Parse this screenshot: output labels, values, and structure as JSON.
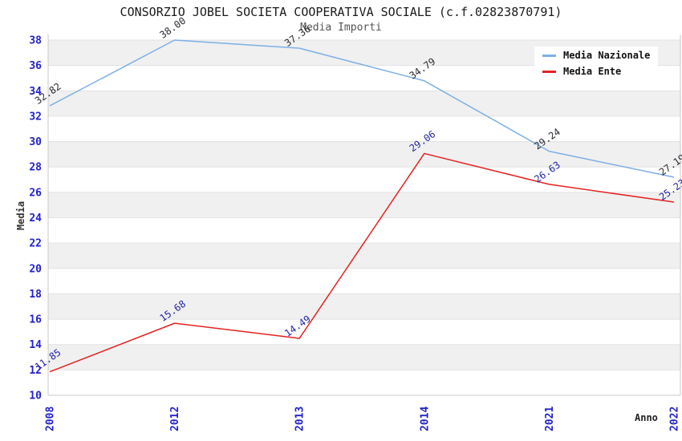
{
  "chart_data": {
    "type": "line",
    "title": "CONSORZIO JOBEL SOCIETA COOPERATIVA SOCIALE (c.f.02823870791)",
    "subtitle": "Media Importi",
    "xlabel": "Anno",
    "ylabel": "Media",
    "categories": [
      "2008",
      "2012",
      "2013",
      "2014",
      "2021",
      "2022"
    ],
    "ylim": [
      10,
      38
    ],
    "ytick_step": 2,
    "grid": "horizontal-bands",
    "legend_position": "upper-right",
    "series": [
      {
        "name": "Media Nazionale",
        "color": "#7dafe6",
        "label_color": "#2b2b33",
        "values": [
          32.82,
          38.0,
          37.36,
          34.79,
          29.24,
          27.19
        ],
        "labels": [
          "32.82",
          "38.00",
          "37.36",
          "34.79",
          "29.24",
          "27.19"
        ]
      },
      {
        "name": "Media Ente",
        "color": "#e62222",
        "label_color": "#2525a8",
        "values": [
          11.85,
          15.68,
          14.49,
          29.06,
          26.63,
          25.23
        ],
        "labels": [
          "11.85",
          "15.68",
          "14.49",
          "29.06",
          "26.63",
          "25.23"
        ]
      }
    ]
  },
  "colors": {
    "tick_label": "#2222cc",
    "band": "#f0f0f0",
    "gridline": "#e2e2e2",
    "axis_border": "#c8c8c8",
    "title": "#1a1a1a",
    "subtitle": "#555555",
    "axis_label": "#333333"
  }
}
